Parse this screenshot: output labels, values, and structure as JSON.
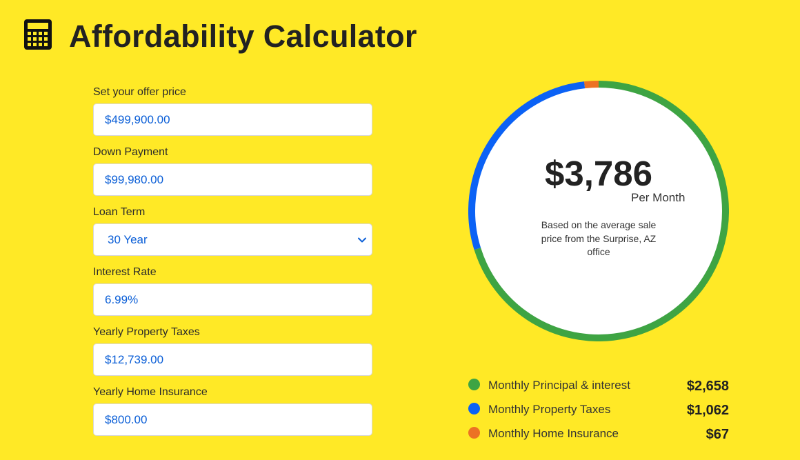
{
  "header": {
    "title": "Affordability Calculator",
    "icon": "calculator-icon"
  },
  "form": {
    "offer_price": {
      "label": "Set your offer price",
      "value": "$499,900.00"
    },
    "down_payment": {
      "label": "Down Payment",
      "value": "$99,980.00"
    },
    "loan_term": {
      "label": "Loan Term",
      "value": "30 Year",
      "options": [
        "30 Year"
      ]
    },
    "interest_rate": {
      "label": "Interest Rate",
      "value": "6.99%"
    },
    "property_taxes": {
      "label": "Yearly Property Taxes",
      "value": "$12,739.00"
    },
    "home_insurance": {
      "label": "Yearly Home Insurance",
      "value": "$800.00"
    }
  },
  "summary": {
    "monthly_total": "$3,786",
    "per_month": "Per Month",
    "note": "Based on the average sale price from the Surprise, AZ office"
  },
  "chart_data": {
    "type": "pie",
    "categories": [
      "Monthly Principal & interest",
      "Monthly Property Taxes",
      "Monthly Home Insurance"
    ],
    "values": [
      2658,
      1062,
      67
    ],
    "colors": [
      "#3ea443",
      "#0b62f5",
      "#ec7224"
    ]
  },
  "legend": {
    "items": [
      {
        "label": "Monthly Principal & interest",
        "value": "$2,658",
        "color": "#3ea443"
      },
      {
        "label": "Monthly Property Taxes",
        "value": "$1,062",
        "color": "#0b62f5"
      },
      {
        "label": "Monthly Home Insurance",
        "value": "$67",
        "color": "#ec7224"
      }
    ]
  },
  "colors": {
    "background": "#ffe926",
    "input_text": "#0a5ed7"
  }
}
